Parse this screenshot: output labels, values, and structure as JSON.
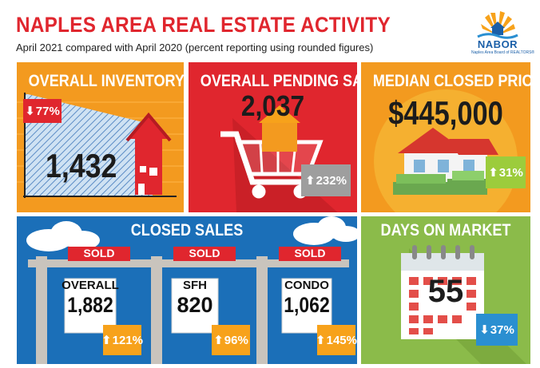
{
  "header": {
    "title": "NAPLES AREA REAL ESTATE ACTIVITY",
    "subtitle": "April 2021 compared with April 2020 (percent reporting using rounded figures)"
  },
  "logo": {
    "name": "NABOR",
    "tagline": "Naples Area Board of REALTORS®"
  },
  "inventory": {
    "title": "OVERALL INVENTORY",
    "value": "1,432",
    "change": "77%",
    "direction": "down",
    "icon": "house-icon",
    "level_shown_by_fill": 0.77
  },
  "pending": {
    "title": "OVERALL PENDING SALES",
    "value": "2,037",
    "change": "232%",
    "direction": "up",
    "icon": "shopping-cart-icon"
  },
  "median_price": {
    "title": "MEDIAN CLOSED PRICE",
    "value": "$445,000",
    "change": "31%",
    "direction": "up",
    "icon": "house-with-money-icon"
  },
  "closed_sales": {
    "title": "CLOSED SALES",
    "signs": [
      {
        "sign": "SOLD",
        "label": "OVERALL",
        "value": "1,882",
        "change": "121%",
        "direction": "up"
      },
      {
        "sign": "SOLD",
        "label": "SFH",
        "value": "820",
        "change": "96%",
        "direction": "up"
      },
      {
        "sign": "SOLD",
        "label": "CONDO",
        "value": "1,062",
        "change": "145%",
        "direction": "up"
      }
    ]
  },
  "days_on_market": {
    "title": "DAYS ON MARKET",
    "value": "55",
    "change": "37%",
    "direction": "down",
    "icon": "calendar-icon"
  },
  "colors": {
    "title_red": "#e0262e",
    "orange": "#f39a1f",
    "red": "#e0262e",
    "blue": "#1b6fb8",
    "green": "#8bbb4a",
    "badge_up": "#f7a21b",
    "badge_down_blue": "#2a8fd1",
    "badge_green": "#9ccc3c"
  }
}
